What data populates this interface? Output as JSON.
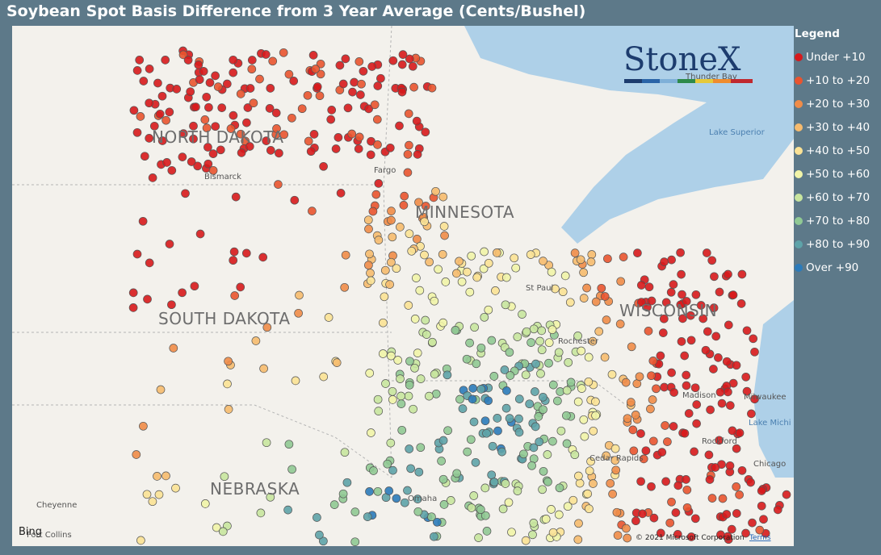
{
  "header": {
    "title": "Soybean Spot Basis Difference from 3 Year Average (Cents/Bushel)"
  },
  "legend": {
    "title": "Legend",
    "items": [
      {
        "label": "Under +10",
        "color": "#d7191c"
      },
      {
        "label": "+10 to +20",
        "color": "#e9542f"
      },
      {
        "label": "+20 to +30",
        "color": "#f08c48"
      },
      {
        "label": "+30 to +40",
        "color": "#f6bb6e"
      },
      {
        "label": "+40 to +50",
        "color": "#fbe295"
      },
      {
        "label": "+50 to +60",
        "color": "#f1f4a8"
      },
      {
        "label": "+60 to +70",
        "color": "#c8e59f"
      },
      {
        "label": "+70 to +80",
        "color": "#90c994"
      },
      {
        "label": "+80 to +90",
        "color": "#5ea3a9"
      },
      {
        "label": "Over +90",
        "color": "#2b7bba"
      }
    ]
  },
  "map": {
    "states": [
      "NORTH DAKOTA",
      "SOUTH DAKOTA",
      "MINNESOTA",
      "WISCONSIN",
      "NEBRASKA"
    ],
    "cities": [
      "Bismarck",
      "Fargo",
      "St Paul",
      "Madison",
      "Milwaukee",
      "Rockford",
      "Cedar Rapids",
      "Chicago",
      "Omaha",
      "Cheyenne",
      "Fort Collins",
      "Thunder Bay",
      "Rochester"
    ],
    "lakes": [
      "Lake Superior",
      "Lake Michi"
    ],
    "logo": "StoneX",
    "provider": "Bing",
    "copyright": "© 2021 Microsoft Corporation",
    "terms": "Terms"
  }
}
